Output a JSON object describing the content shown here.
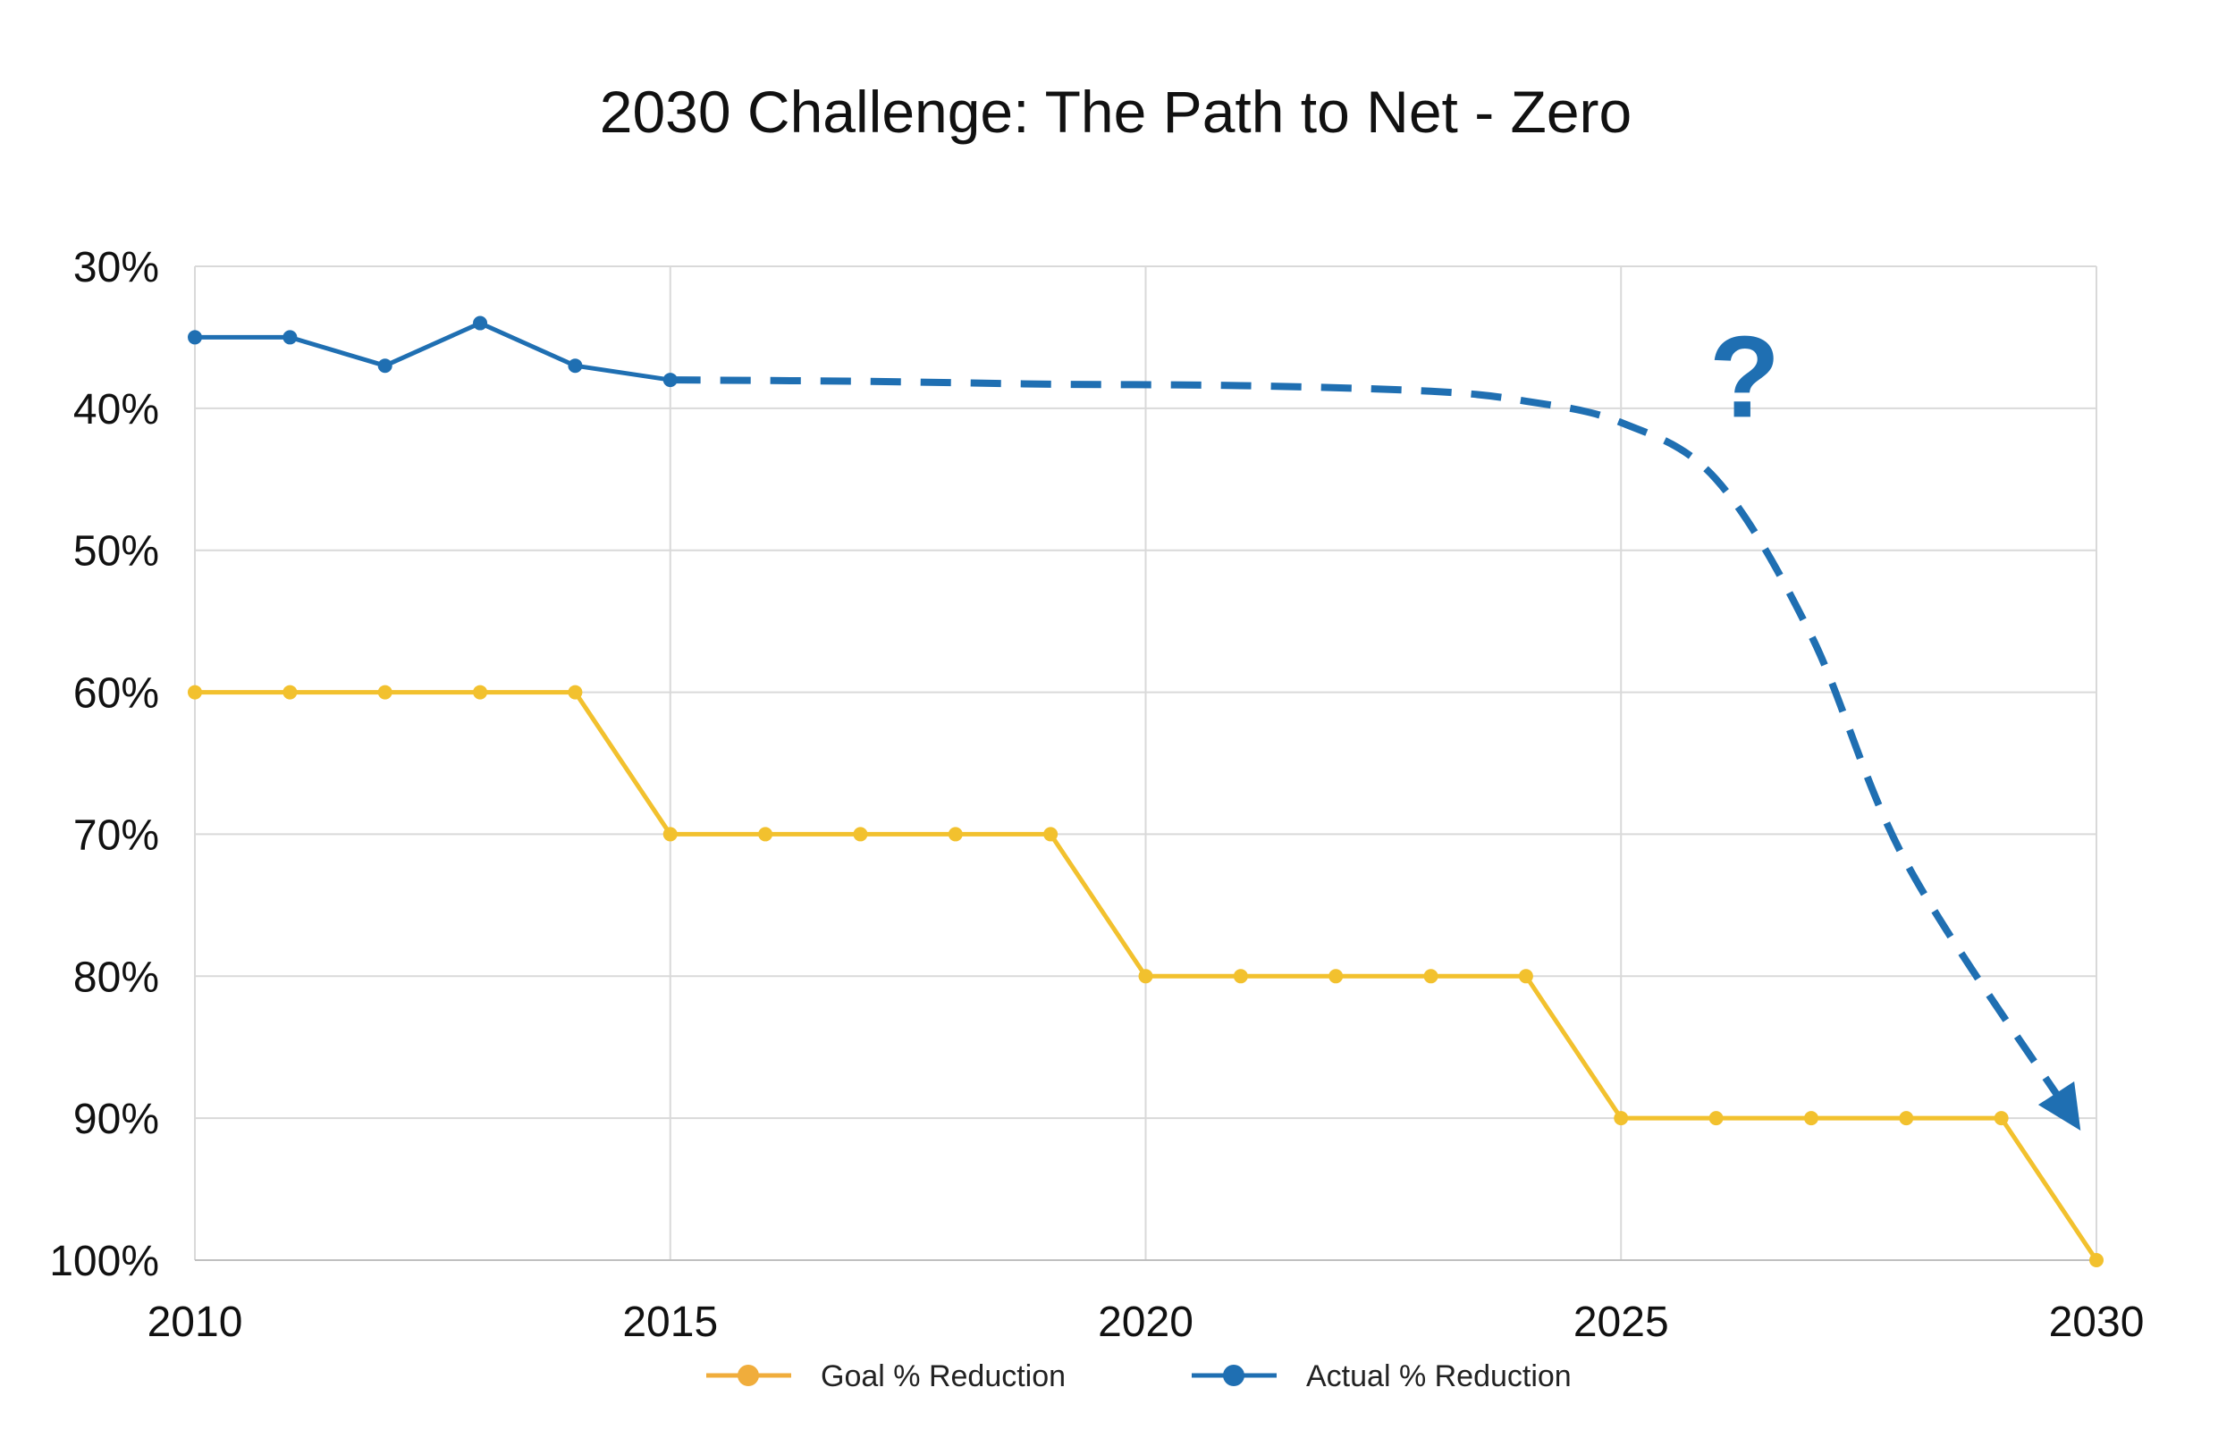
{
  "chart_data": {
    "type": "line",
    "title": "2030 Challenge: The Path to Net - Zero",
    "xlabel": "",
    "ylabel": "",
    "x": [
      2010,
      2011,
      2012,
      2013,
      2014,
      2015,
      2016,
      2017,
      2018,
      2019,
      2020,
      2021,
      2022,
      2023,
      2024,
      2025,
      2026,
      2027,
      2028,
      2029,
      2030
    ],
    "x_ticks": [
      2010,
      2015,
      2020,
      2025,
      2030
    ],
    "x_tick_labels": [
      "2010",
      "2015",
      "2020",
      "2025",
      "2030"
    ],
    "xlim": [
      2010,
      2030
    ],
    "y_ticks": [
      30,
      40,
      50,
      60,
      70,
      80,
      90,
      100
    ],
    "y_tick_labels": [
      "30%",
      "40%",
      "50%",
      "60%",
      "70%",
      "80%",
      "90%",
      "100%"
    ],
    "ylim": [
      30,
      100
    ],
    "y_inverted": true,
    "grid": true,
    "legend_position": "bottom-center",
    "series": [
      {
        "name": "Goal % Reduction",
        "color": "#f2c12e",
        "legend_color": "#f0ad3c",
        "x": [
          2010,
          2011,
          2012,
          2013,
          2014,
          2015,
          2016,
          2017,
          2018,
          2019,
          2020,
          2021,
          2022,
          2023,
          2024,
          2025,
          2026,
          2027,
          2028,
          2029,
          2030
        ],
        "values": [
          60,
          60,
          60,
          60,
          60,
          70,
          70,
          70,
          70,
          70,
          80,
          80,
          80,
          80,
          80,
          90,
          90,
          90,
          90,
          90,
          100
        ]
      },
      {
        "name": "Actual % Reduction",
        "color": "#1f6fb2",
        "x": [
          2010,
          2011,
          2012,
          2013,
          2014,
          2015
        ],
        "values": [
          35,
          35,
          37,
          34,
          37,
          38
        ]
      }
    ],
    "projection": {
      "series": "Actual % Reduction",
      "style": "dashed-arrow",
      "x": [
        2015,
        2017,
        2019,
        2021,
        2023,
        2024,
        2025,
        2026,
        2027,
        2028,
        2029.7
      ],
      "values": [
        38,
        38.1,
        38.3,
        38.4,
        38.8,
        39.5,
        41,
        45,
        56,
        72,
        89.5
      ],
      "annotation": "?"
    }
  }
}
